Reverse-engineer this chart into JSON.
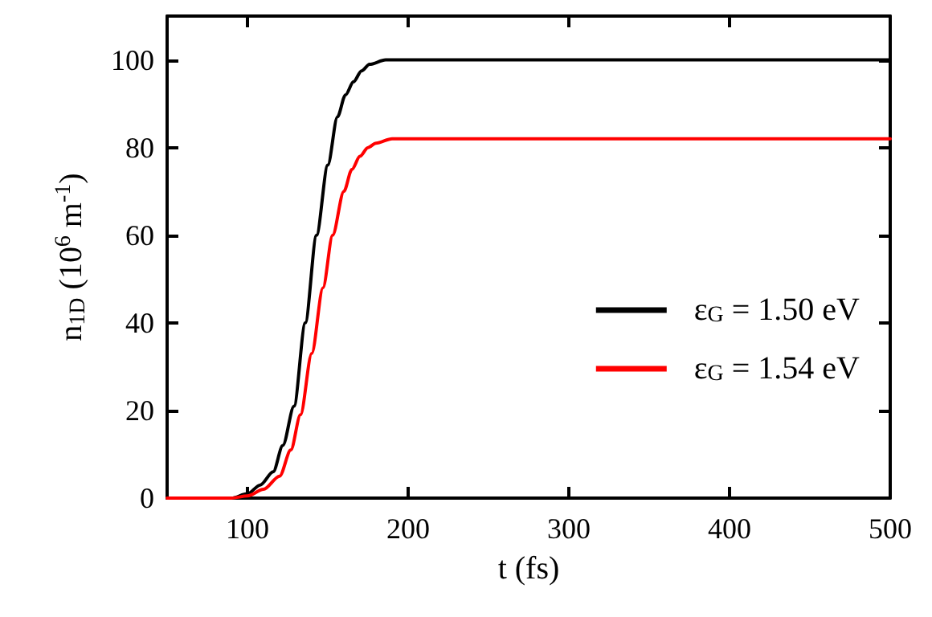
{
  "chart_data": {
    "type": "line",
    "xlabel": "t (fs)",
    "ylabel": "n$_{1D}$ (10$^{6}$ m$^{-1}$)",
    "xlim": [
      50,
      500
    ],
    "xticks": [
      100,
      200,
      300,
      400,
      500
    ],
    "ylim": [
      0,
      110
    ],
    "yticks": [
      0,
      20,
      40,
      60,
      80,
      100
    ],
    "grid": false,
    "legend": "right",
    "marker": "none",
    "line_style": "solid",
    "series": [
      {
        "name": "ε$_{G}$ = 1.50 eV",
        "color": "#000000",
        "x": [
          50,
          90,
          100,
          108,
          116,
          122,
          129,
          136,
          143,
          150,
          156,
          161,
          166,
          171,
          176,
          186,
          200,
          250,
          300,
          400,
          500
        ],
        "values": [
          0,
          0,
          1,
          3,
          6,
          12,
          21,
          40,
          60,
          76,
          87,
          92,
          95,
          97.5,
          99,
          100,
          100,
          100,
          100,
          100,
          100
        ]
      },
      {
        "name": "ε$_{G}$ = 1.54 eV",
        "color": "#ff0000",
        "x": [
          50,
          90,
          100,
          110,
          120,
          127,
          133,
          140,
          147,
          153,
          160,
          165,
          170,
          175,
          180,
          190,
          200,
          250,
          300,
          400,
          500
        ],
        "values": [
          0,
          0,
          0.5,
          2,
          5,
          11,
          19,
          33,
          48,
          60,
          70,
          75,
          78,
          80,
          81,
          82,
          82,
          82,
          82,
          82,
          82
        ]
      }
    ]
  }
}
